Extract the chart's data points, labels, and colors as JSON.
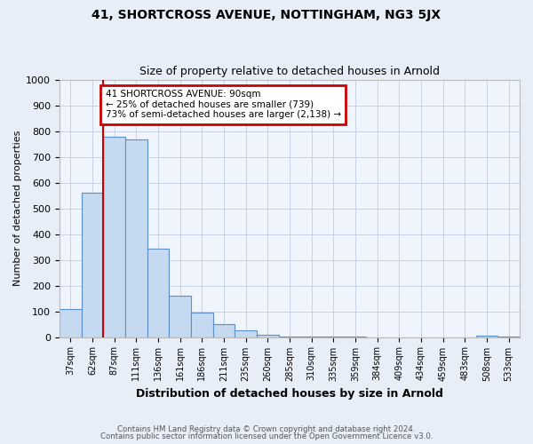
{
  "title": "41, SHORTCROSS AVENUE, NOTTINGHAM, NG3 5JX",
  "subtitle": "Size of property relative to detached houses in Arnold",
  "xlabel": "Distribution of detached houses by size in Arnold",
  "ylabel": "Number of detached properties",
  "categories": [
    "37sqm",
    "62sqm",
    "87sqm",
    "111sqm",
    "136sqm",
    "161sqm",
    "186sqm",
    "211sqm",
    "235sqm",
    "260sqm",
    "285sqm",
    "310sqm",
    "335sqm",
    "359sqm",
    "384sqm",
    "409sqm",
    "434sqm",
    "459sqm",
    "483sqm",
    "508sqm",
    "533sqm"
  ],
  "values": [
    110,
    560,
    778,
    768,
    345,
    162,
    95,
    50,
    25,
    10,
    3,
    2,
    1,
    1,
    0,
    0,
    0,
    0,
    0,
    5,
    2
  ],
  "bar_color": "#c5d9f0",
  "bar_edge_color": "#5b8fc9",
  "property_bin_index": 2,
  "vline_color": "#cc0000",
  "annotation_line1": "41 SHORTCROSS AVENUE: 90sqm",
  "annotation_line2": "← 25% of detached houses are smaller (739)",
  "annotation_line3": "73% of semi-detached houses are larger (2,138) →",
  "annotation_box_edge_color": "#cc0000",
  "footer_line1": "Contains HM Land Registry data © Crown copyright and database right 2024.",
  "footer_line2": "Contains public sector information licensed under the Open Government Licence v3.0.",
  "bg_color": "#e8eef8",
  "plot_bg_color": "#f0f4fc",
  "ylim": [
    0,
    1000
  ],
  "title_fontsize": 10,
  "subtitle_fontsize": 9,
  "annotation_fontsize": 7.5,
  "ylabel_fontsize": 8,
  "xlabel_fontsize": 9,
  "tick_fontsize": 7
}
